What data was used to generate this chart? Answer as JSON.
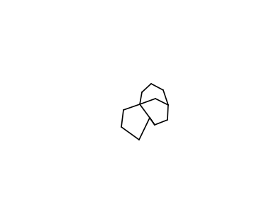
{
  "title": "",
  "background": "#ffffff",
  "line_color": "#000000",
  "line_width": 1.2,
  "figsize": [
    3.65,
    2.89
  ],
  "dpi": 100
}
